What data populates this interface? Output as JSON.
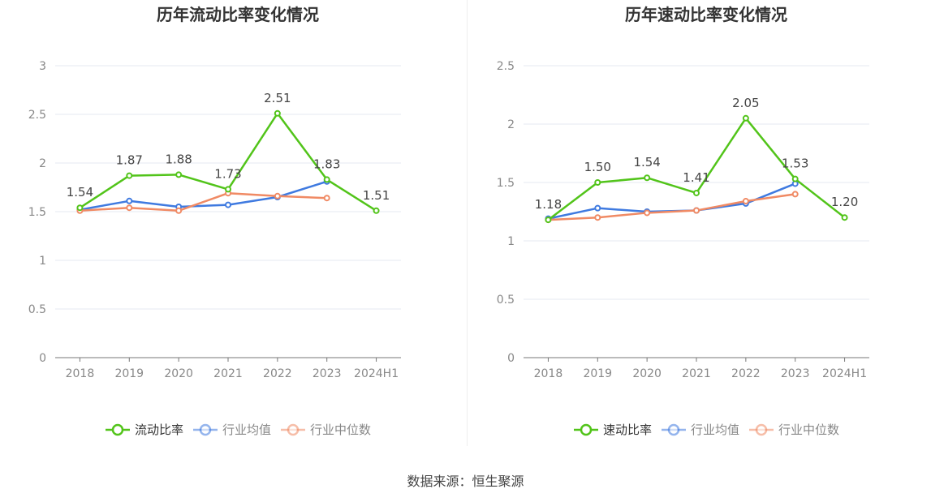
{
  "source_label": "数据来源：恒生聚源",
  "chart_data": [
    {
      "type": "line",
      "title": "历年流动比率变化情况",
      "categories": [
        "2018",
        "2019",
        "2020",
        "2021",
        "2022",
        "2023",
        "2024H1"
      ],
      "ylim": [
        0,
        3
      ],
      "yticks": [
        0,
        0.5,
        1,
        1.5,
        2,
        2.5,
        3
      ],
      "ytick_labels": [
        "0",
        "0.5",
        "1",
        "1.5",
        "2",
        "2.5",
        "3"
      ],
      "grid": true,
      "legend_position": "bottom",
      "series": [
        {
          "name": "流动比率",
          "color": "#52c41a",
          "values": [
            1.54,
            1.87,
            1.88,
            1.73,
            2.51,
            1.83,
            1.51
          ],
          "labels": [
            "1.54",
            "1.87",
            "1.88",
            "1.73",
            "2.51",
            "1.83",
            "1.51"
          ]
        },
        {
          "name": "行业均值",
          "color": "#3f7ae0",
          "values": [
            1.52,
            1.61,
            1.55,
            1.57,
            1.65,
            1.81,
            null
          ]
        },
        {
          "name": "行业中位数",
          "color": "#f08a64",
          "values": [
            1.51,
            1.54,
            1.51,
            1.69,
            1.66,
            1.64,
            null
          ]
        }
      ]
    },
    {
      "type": "line",
      "title": "历年速动比率变化情况",
      "categories": [
        "2018",
        "2019",
        "2020",
        "2021",
        "2022",
        "2023",
        "2024H1"
      ],
      "ylim": [
        0,
        2.5
      ],
      "yticks": [
        0,
        0.5,
        1,
        1.5,
        2,
        2.5
      ],
      "ytick_labels": [
        "0",
        "0.5",
        "1",
        "1.5",
        "2",
        "2.5"
      ],
      "grid": true,
      "legend_position": "bottom",
      "series": [
        {
          "name": "速动比率",
          "color": "#52c41a",
          "values": [
            1.18,
            1.5,
            1.54,
            1.41,
            2.05,
            1.53,
            1.2
          ],
          "labels": [
            "1.18",
            "1.50",
            "1.54",
            "1.41",
            "2.05",
            "1.53",
            "1.20"
          ]
        },
        {
          "name": "行业均值",
          "color": "#3f7ae0",
          "values": [
            1.19,
            1.28,
            1.25,
            1.26,
            1.32,
            1.49,
            null
          ]
        },
        {
          "name": "行业中位数",
          "color": "#f08a64",
          "values": [
            1.18,
            1.2,
            1.24,
            1.26,
            1.34,
            1.4,
            null
          ]
        }
      ]
    }
  ]
}
